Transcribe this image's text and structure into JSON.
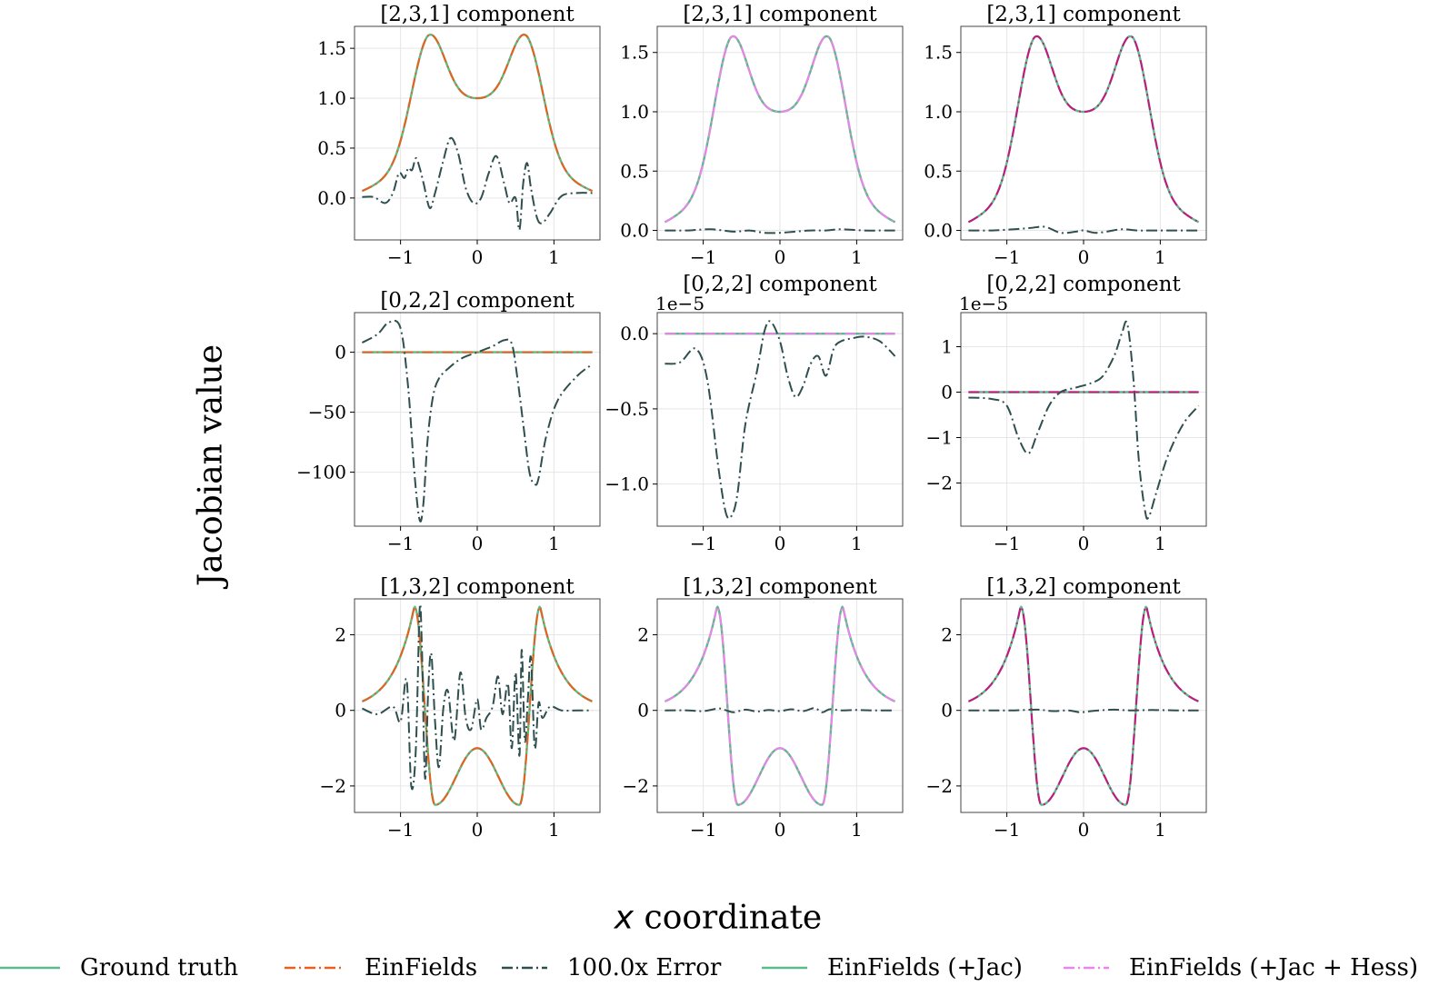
{
  "figure": {
    "ylabel": "Jacobian value",
    "xlabel_var": "x",
    "xlabel_rest": "coordinate"
  },
  "legend": {
    "placement": "bottom",
    "items": [
      {
        "label": "Ground truth",
        "color": "#5cbb8a",
        "style": "solid"
      },
      {
        "label": "EinFields",
        "color": "#e8601c",
        "style": "dashdot"
      },
      {
        "label": "100.0x Error",
        "color": "#2f4f4f",
        "style": "dashdot"
      },
      {
        "label": "EinFields (+Jac)",
        "color": "#5cbb8a",
        "style": "solid"
      },
      {
        "label": "EinFields (+Jac + Hess)",
        "color": "#ee82ee",
        "style": "dashdot"
      }
    ]
  },
  "colors": {
    "ground_truth": "#5cbb8a",
    "einfields": "#e8601c",
    "error": "#2f4f4f",
    "jac": "#5cbb8a",
    "jac_hess": "#ee82ee",
    "overlay_dark": "#c71585"
  },
  "chart_data": [
    {
      "type": "line",
      "title": "[2,3,1] component",
      "row": 0,
      "col": 0,
      "xlim": [
        -1.6,
        1.6
      ],
      "ylim": [
        -0.42,
        1.72
      ],
      "xticks": [
        -1,
        0,
        1
      ],
      "xtick_labels": [
        "−1",
        "0",
        "1"
      ],
      "yticks": [
        0,
        0.5,
        1,
        1.5
      ],
      "ytick_labels": [
        "0.0",
        "0.5",
        "1.0",
        "1.5"
      ],
      "offset_text": "",
      "grid": true,
      "series": [
        {
          "name": "Ground truth",
          "curve": "c231",
          "style": "solid",
          "color": "#5cbb8a"
        },
        {
          "name": "EinFields",
          "curve": "c231",
          "style": "dashdot",
          "color": "#e8601c"
        },
        {
          "name": "100.0x Error",
          "style": "dashdot",
          "color": "#2f4f4f",
          "x": [
            -1.5,
            -1.35,
            -1.2,
            -1.1,
            -1.02,
            -0.95,
            -0.9,
            -0.85,
            -0.8,
            -0.75,
            -0.7,
            -0.62,
            -0.55,
            -0.45,
            -0.35,
            -0.25,
            -0.15,
            -0.05,
            0.05,
            0.15,
            0.25,
            0.35,
            0.42,
            0.5,
            0.55,
            0.6,
            0.65,
            0.7,
            0.78,
            0.85,
            0.95,
            1.1,
            1.3,
            1.5
          ],
          "y": [
            0.01,
            0.01,
            -0.05,
            0.05,
            0.25,
            0.2,
            0.3,
            0.28,
            0.4,
            0.3,
            0.15,
            -0.1,
            0.05,
            0.35,
            0.6,
            0.45,
            0.1,
            -0.05,
            0.0,
            0.25,
            0.42,
            0.15,
            -0.05,
            0.0,
            -0.32,
            0.15,
            0.35,
            0.1,
            -0.2,
            -0.25,
            -0.15,
            0.02,
            0.05,
            0.05
          ]
        }
      ]
    },
    {
      "type": "line",
      "title": "[2,3,1] component",
      "row": 0,
      "col": 1,
      "xlim": [
        -1.6,
        1.6
      ],
      "ylim": [
        -0.08,
        1.72
      ],
      "xticks": [
        -1,
        0,
        1
      ],
      "xtick_labels": [
        "−1",
        "0",
        "1"
      ],
      "yticks": [
        0,
        0.5,
        1,
        1.5
      ],
      "ytick_labels": [
        "0.0",
        "0.5",
        "1.0",
        "1.5"
      ],
      "offset_text": "",
      "grid": true,
      "series": [
        {
          "name": "Ground truth",
          "curve": "c231",
          "style": "solid",
          "color": "#5cbb8a"
        },
        {
          "name": "100.0x Error",
          "style": "dashdot",
          "color": "#2f4f4f",
          "x": [
            -1.5,
            -1.2,
            -0.9,
            -0.6,
            -0.4,
            -0.2,
            0.0,
            0.2,
            0.4,
            0.6,
            0.8,
            1.1,
            1.5
          ],
          "y": [
            0.0,
            0.0,
            0.01,
            -0.01,
            0.0,
            -0.02,
            -0.02,
            -0.01,
            0.0,
            0.0,
            0.01,
            0.0,
            0.0
          ]
        },
        {
          "name": "EinFields (+Jac + Hess)",
          "curve": "c231",
          "style": "dashdot",
          "color": "#ee82ee"
        }
      ]
    },
    {
      "type": "line",
      "title": "[2,3,1] component",
      "row": 0,
      "col": 2,
      "xlim": [
        -1.6,
        1.6
      ],
      "ylim": [
        -0.08,
        1.72
      ],
      "xticks": [
        -1,
        0,
        1
      ],
      "xtick_labels": [
        "−1",
        "0",
        "1"
      ],
      "yticks": [
        0,
        0.5,
        1,
        1.5
      ],
      "ytick_labels": [
        "0.0",
        "0.5",
        "1.0",
        "1.5"
      ],
      "offset_text": "",
      "grid": true,
      "series": [
        {
          "name": "Ground truth",
          "curve": "c231",
          "style": "solid",
          "color": "#5cbb8a"
        },
        {
          "name": "100.0x Error",
          "style": "dashdot",
          "color": "#2f4f4f",
          "x": [
            -1.5,
            -1.2,
            -0.9,
            -0.7,
            -0.5,
            -0.3,
            -0.1,
            0.0,
            0.15,
            0.3,
            0.5,
            0.7,
            0.9,
            1.2,
            1.5
          ],
          "y": [
            0.0,
            0.0,
            0.01,
            0.02,
            0.03,
            -0.02,
            -0.01,
            0.0,
            -0.02,
            -0.01,
            0.01,
            0.0,
            0.0,
            0.0,
            0.0
          ]
        },
        {
          "name": "EinFields (+Jac + Hess)",
          "curve": "c231",
          "style": "dashdot",
          "color": "#c71585"
        }
      ]
    },
    {
      "type": "line",
      "title": "[0,2,2] component",
      "row": 1,
      "col": 0,
      "xlim": [
        -1.6,
        1.6
      ],
      "ylim": [
        -145,
        33
      ],
      "xticks": [
        -1,
        0,
        1
      ],
      "xtick_labels": [
        "−1",
        "0",
        "1"
      ],
      "yticks": [
        -100,
        -50,
        0
      ],
      "ytick_labels": [
        "−100",
        "−50",
        "0"
      ],
      "offset_text": "",
      "grid": true,
      "series": [
        {
          "name": "Ground truth",
          "curve": "zero",
          "style": "solid",
          "color": "#5cbb8a"
        },
        {
          "name": "EinFields",
          "curve": "zero",
          "style": "dashdot",
          "color": "#e8601c"
        },
        {
          "name": "100.0x Error",
          "style": "dashdot",
          "color": "#2f4f4f",
          "x": [
            -1.5,
            -1.3,
            -1.15,
            -1.0,
            -0.9,
            -0.82,
            -0.75,
            -0.7,
            -0.65,
            -0.58,
            -0.5,
            -0.35,
            -0.2,
            0.0,
            0.2,
            0.35,
            0.45,
            0.52,
            0.6,
            0.68,
            0.75,
            0.8,
            0.9,
            1.05,
            1.3,
            1.5
          ],
          "y": [
            8,
            15,
            25,
            20,
            -30,
            -100,
            -140,
            -125,
            -75,
            -38,
            -22,
            -12,
            -5,
            0,
            5,
            10,
            7,
            -20,
            -60,
            -100,
            -110,
            -105,
            -70,
            -40,
            -20,
            -10
          ]
        }
      ]
    },
    {
      "type": "line",
      "title": "[0,2,2] component",
      "row": 1,
      "col": 1,
      "xlim": [
        -1.6,
        1.6
      ],
      "ylim": [
        -1.28,
        0.14
      ],
      "xticks": [
        -1,
        0,
        1
      ],
      "xtick_labels": [
        "−1",
        "0",
        "1"
      ],
      "yticks": [
        -1.0,
        -0.5,
        0.0
      ],
      "ytick_labels": [
        "−1.0",
        "−0.5",
        "0.0"
      ],
      "offset_text": "1e−5",
      "grid": true,
      "series": [
        {
          "name": "Ground truth",
          "curve": "zero",
          "style": "solid",
          "color": "#5cbb8a"
        },
        {
          "name": "100.0x Error",
          "style": "dashdot",
          "color": "#2f4f4f",
          "x": [
            -1.5,
            -1.3,
            -1.1,
            -0.95,
            -0.8,
            -0.7,
            -0.62,
            -0.55,
            -0.45,
            -0.3,
            -0.2,
            -0.12,
            0.0,
            0.1,
            0.2,
            0.3,
            0.4,
            0.5,
            0.6,
            0.7,
            0.8,
            0.95,
            1.1,
            1.3,
            1.5
          ],
          "y": [
            -0.2,
            -0.19,
            -0.1,
            -0.3,
            -0.9,
            -1.2,
            -1.2,
            -1.05,
            -0.6,
            -0.25,
            0.02,
            0.08,
            -0.05,
            -0.28,
            -0.42,
            -0.35,
            -0.2,
            -0.15,
            -0.28,
            -0.1,
            -0.05,
            -0.03,
            -0.02,
            -0.05,
            -0.15
          ]
        },
        {
          "name": "EinFields (+Jac + Hess)",
          "curve": "zero",
          "style": "dashdot",
          "color": "#ee82ee"
        }
      ]
    },
    {
      "type": "line",
      "title": "[0,2,2] component",
      "row": 1,
      "col": 2,
      "xlim": [
        -1.6,
        1.6
      ],
      "ylim": [
        -2.95,
        1.75
      ],
      "xticks": [
        -1,
        0,
        1
      ],
      "xtick_labels": [
        "−1",
        "0",
        "1"
      ],
      "yticks": [
        -2,
        -1,
        0,
        1
      ],
      "ytick_labels": [
        "−2",
        "−1",
        "0",
        "1"
      ],
      "offset_text": "1e−5",
      "grid": true,
      "series": [
        {
          "name": "Ground truth",
          "curve": "zero",
          "style": "solid",
          "color": "#5cbb8a"
        },
        {
          "name": "100.0x Error",
          "style": "dashdot",
          "color": "#2f4f4f",
          "x": [
            -1.5,
            -1.2,
            -1.0,
            -0.85,
            -0.72,
            -0.6,
            -0.45,
            -0.3,
            -0.1,
            0.1,
            0.25,
            0.4,
            0.5,
            0.57,
            0.65,
            0.72,
            0.8,
            0.85,
            0.95,
            1.1,
            1.3,
            1.5
          ],
          "y": [
            -0.12,
            -0.15,
            -0.3,
            -1.0,
            -1.35,
            -0.9,
            -0.3,
            0.0,
            0.1,
            0.2,
            0.35,
            0.8,
            1.3,
            1.5,
            0.3,
            -1.5,
            -2.6,
            -2.75,
            -2.2,
            -1.4,
            -0.7,
            -0.3
          ]
        },
        {
          "name": "EinFields (+Jac + Hess)",
          "curve": "zero",
          "style": "dashdot",
          "color": "#c71585"
        }
      ]
    },
    {
      "type": "line",
      "title": "[1,3,2] component",
      "row": 2,
      "col": 0,
      "xlim": [
        -1.6,
        1.6
      ],
      "ylim": [
        -2.7,
        2.95
      ],
      "xticks": [
        -1,
        0,
        1
      ],
      "xtick_labels": [
        "−1",
        "0",
        "1"
      ],
      "yticks": [
        -2,
        0,
        2
      ],
      "ytick_labels": [
        "−2",
        "0",
        "2"
      ],
      "offset_text": "",
      "grid": true,
      "series": [
        {
          "name": "Ground truth",
          "curve": "c132",
          "style": "solid",
          "color": "#5cbb8a"
        },
        {
          "name": "EinFields",
          "curve": "c132",
          "style": "dashdot",
          "color": "#e8601c"
        },
        {
          "name": "100.0x Error",
          "style": "dashdot",
          "color": "#2f4f4f",
          "x": [
            -1.5,
            -1.3,
            -1.1,
            -1.0,
            -0.92,
            -0.86,
            -0.8,
            -0.75,
            -0.72,
            -0.68,
            -0.64,
            -0.6,
            -0.55,
            -0.5,
            -0.44,
            -0.38,
            -0.3,
            -0.22,
            -0.15,
            -0.08,
            0.0,
            0.05,
            0.12,
            0.2,
            0.27,
            0.33,
            0.4,
            0.45,
            0.5,
            0.55,
            0.58,
            0.62,
            0.66,
            0.7,
            0.75,
            0.8,
            0.85,
            0.95,
            1.1,
            1.3,
            1.5
          ],
          "y": [
            0.05,
            -0.1,
            0.1,
            -0.3,
            0.8,
            -2.0,
            -1.0,
            2.7,
            1.5,
            -1.8,
            0.5,
            1.5,
            -0.3,
            -1.5,
            0.1,
            0.5,
            -0.8,
            1.0,
            -0.2,
            -0.5,
            0.3,
            -0.5,
            -0.2,
            0.1,
            0.9,
            -0.1,
            0.7,
            -1.0,
            1.0,
            -1.2,
            1.6,
            -0.8,
            0.3,
            1.4,
            -1.0,
            0.2,
            -0.2,
            0.1,
            0.0,
            0.0,
            0.0
          ]
        }
      ]
    },
    {
      "type": "line",
      "title": "[1,3,2] component",
      "row": 2,
      "col": 1,
      "xlim": [
        -1.6,
        1.6
      ],
      "ylim": [
        -2.7,
        2.95
      ],
      "xticks": [
        -1,
        0,
        1
      ],
      "xtick_labels": [
        "−1",
        "0",
        "1"
      ],
      "yticks": [
        -2,
        0,
        2
      ],
      "ytick_labels": [
        "−2",
        "0",
        "2"
      ],
      "offset_text": "",
      "grid": true,
      "series": [
        {
          "name": "Ground truth",
          "curve": "c132",
          "style": "solid",
          "color": "#5cbb8a"
        },
        {
          "name": "100.0x Error",
          "style": "dashdot",
          "color": "#2f4f4f",
          "x": [
            -1.5,
            -1.2,
            -1.0,
            -0.8,
            -0.7,
            -0.6,
            -0.45,
            -0.3,
            -0.15,
            0.0,
            0.15,
            0.3,
            0.45,
            0.55,
            0.65,
            0.8,
            1.0,
            1.2,
            1.5
          ],
          "y": [
            0.0,
            0.0,
            -0.02,
            0.05,
            0.0,
            -0.05,
            0.02,
            -0.03,
            0.01,
            -0.02,
            0.03,
            -0.02,
            0.06,
            -0.05,
            0.03,
            0.0,
            0.01,
            0.0,
            0.0
          ]
        },
        {
          "name": "EinFields (+Jac + Hess)",
          "curve": "c132",
          "style": "dashdot",
          "color": "#ee82ee"
        }
      ]
    },
    {
      "type": "line",
      "title": "[1,3,2] component",
      "row": 2,
      "col": 2,
      "xlim": [
        -1.6,
        1.6
      ],
      "ylim": [
        -2.7,
        2.95
      ],
      "xticks": [
        -1,
        0,
        1
      ],
      "xtick_labels": [
        "−1",
        "0",
        "1"
      ],
      "yticks": [
        -2,
        0,
        2
      ],
      "ytick_labels": [
        "−2",
        "0",
        "2"
      ],
      "offset_text": "",
      "grid": true,
      "series": [
        {
          "name": "Ground truth",
          "curve": "c132",
          "style": "solid",
          "color": "#5cbb8a"
        },
        {
          "name": "100.0x Error",
          "style": "dashdot",
          "color": "#2f4f4f",
          "x": [
            -1.5,
            -1.2,
            -0.9,
            -0.6,
            -0.4,
            -0.2,
            -0.05,
            0.05,
            0.2,
            0.4,
            0.6,
            0.9,
            1.2,
            1.5
          ],
          "y": [
            0.0,
            0.0,
            0.0,
            0.02,
            -0.02,
            0.0,
            -0.05,
            -0.03,
            0.0,
            0.02,
            0.0,
            0.01,
            0.0,
            0.0
          ]
        },
        {
          "name": "EinFields (+Jac + Hess)",
          "curve": "c132",
          "style": "dashdot",
          "color": "#c71585"
        }
      ]
    }
  ]
}
